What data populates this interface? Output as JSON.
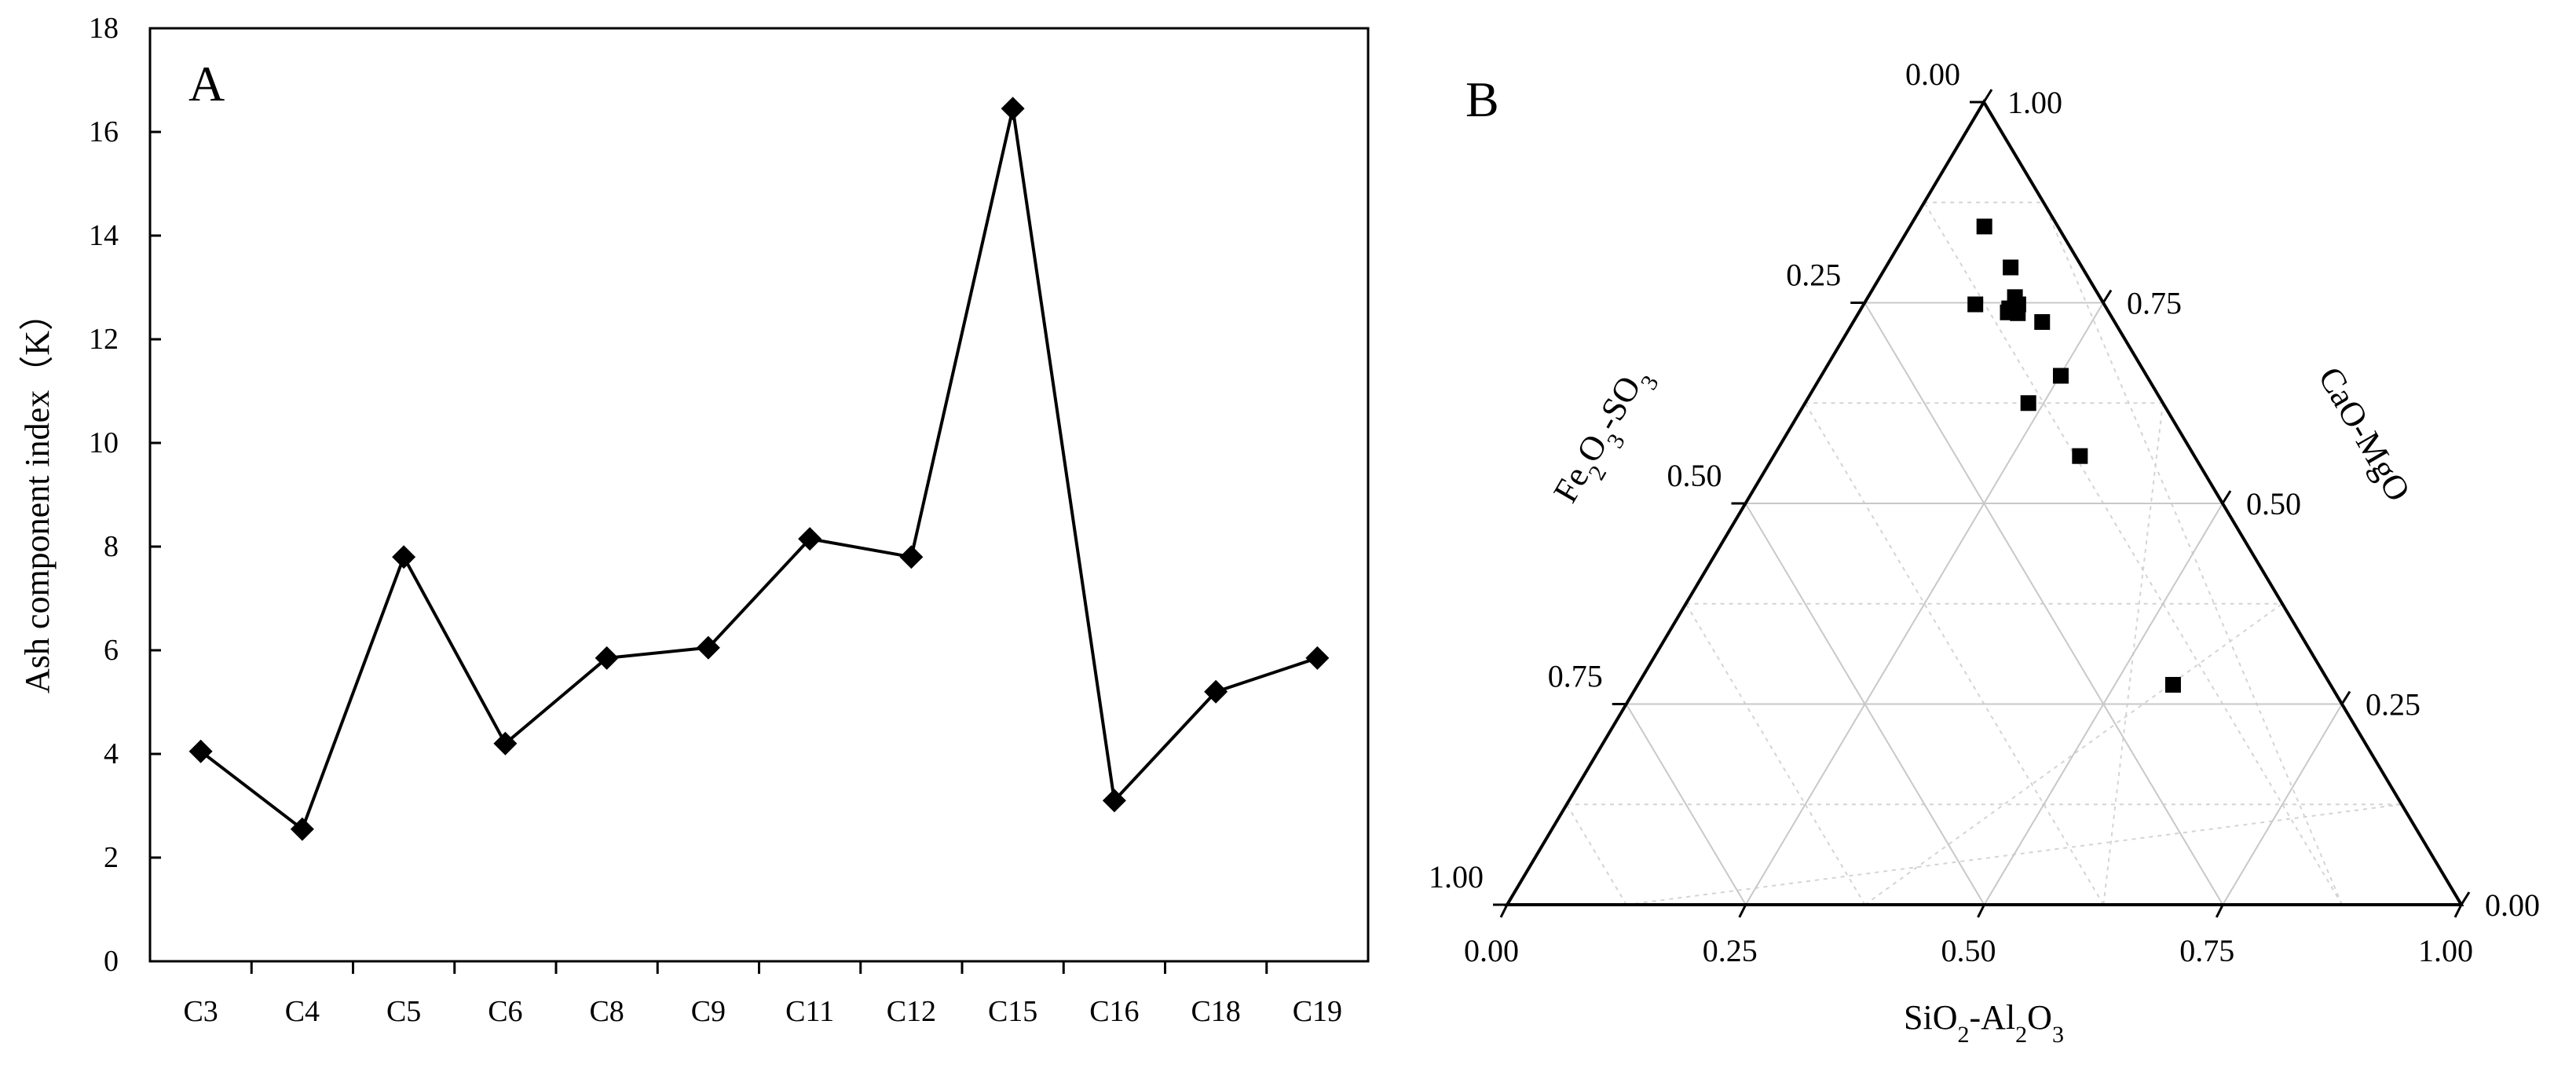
{
  "chart_data": [
    {
      "type": "line",
      "panel_label": "A",
      "title": "",
      "xlabel": "",
      "ylabel": "Ash component index（K）",
      "categories": [
        "C3",
        "C4",
        "C5",
        "C6",
        "C8",
        "C9",
        "C11",
        "C12",
        "C15",
        "C16",
        "C18",
        "C19"
      ],
      "values": [
        4.05,
        2.55,
        7.8,
        4.2,
        5.85,
        6.05,
        8.15,
        7.8,
        16.45,
        3.1,
        5.2,
        5.85
      ],
      "ylim": [
        0,
        18
      ],
      "yticks": [
        "0",
        "2",
        "4",
        "6",
        "8",
        "10",
        "12",
        "14",
        "16",
        "18"
      ],
      "grid": false,
      "marker": "diamond"
    },
    {
      "type": "scatter",
      "subtype": "ternary",
      "panel_label": "B",
      "axes": {
        "bottom": {
          "label_parts": [
            "SiO",
            "2",
            "-Al",
            "2",
            "O",
            "3"
          ],
          "ticks": [
            "0.00",
            "0.25",
            "0.50",
            "0.75",
            "1.00"
          ]
        },
        "left": {
          "label_parts": [
            "Fe",
            "2",
            "O",
            "3",
            "-SO",
            "3"
          ],
          "ticks": [
            "0.00",
            "0.25",
            "0.50",
            "0.75",
            "1.00"
          ]
        },
        "right": {
          "label": "CaO-MgO",
          "ticks": [
            "0.00",
            "0.25",
            "0.50",
            "0.75",
            "1.00"
          ]
        }
      },
      "points": [
        {
          "sio2_al2o3": 0.077,
          "fe2o3_so3": 0.078,
          "cao_mgo": 0.845
        },
        {
          "sio2_al2o3": 0.075,
          "fe2o3_so3": 0.131,
          "cao_mgo": 0.794
        },
        {
          "sio2_al2o3": 0.076,
          "fe2o3_so3": 0.198,
          "cao_mgo": 0.726
        },
        {
          "sio2_al2o3": 0.089,
          "fe2o3_so3": 0.154,
          "cao_mgo": 0.757
        },
        {
          "sio2_al2o3": 0.102,
          "fe2o3_so3": 0.155,
          "cao_mgo": 0.743
        },
        {
          "sio2_al2o3": 0.09,
          "fe2o3_so3": 0.162,
          "cao_mgo": 0.748
        },
        {
          "sio2_al2o3": 0.096,
          "fe2o3_so3": 0.167,
          "cao_mgo": 0.737
        },
        {
          "sio2_al2o3": 0.106,
          "fe2o3_so3": 0.156,
          "cao_mgo": 0.738
        },
        {
          "sio2_al2o3": 0.135,
          "fe2o3_so3": 0.117,
          "cao_mgo": 0.748
        },
        {
          "sio2_al2o3": 0.09,
          "fe2o3_so3": 0.251,
          "cao_mgo": 0.659
        },
        {
          "sio2_al2o3": 0.141,
          "fe2o3_so3": 0.234,
          "cao_mgo": 0.625
        },
        {
          "sio2_al2o3": 0.12,
          "fe2o3_so3": 0.321,
          "cao_mgo": 0.559
        },
        {
          "sio2_al2o3": 0.165,
          "fe2o3_so3": 0.561,
          "cao_mgo": 0.274
        }
      ]
    }
  ]
}
